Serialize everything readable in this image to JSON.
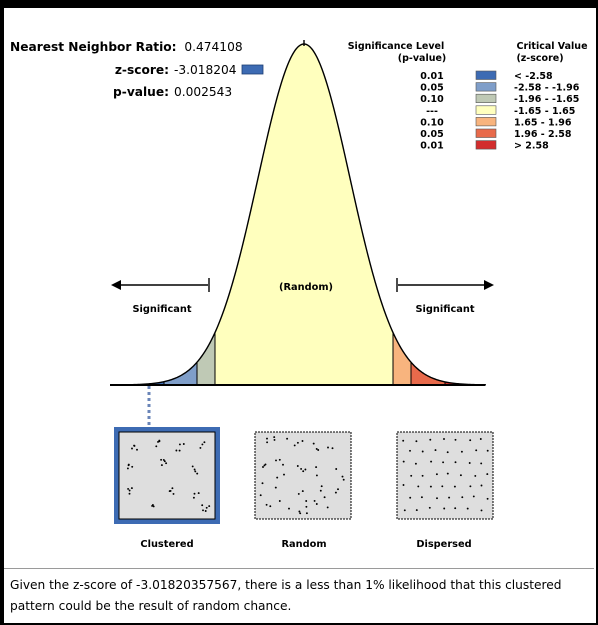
{
  "stats": {
    "nnr_label": "Nearest Neighbor Ratio:",
    "nnr_value": "0.474108",
    "z_label": "z-score:",
    "z_value": "-3.018204",
    "p_label": "p-value:",
    "p_value": "0.002543",
    "z_marker_color": "#3d6bb3"
  },
  "legend": {
    "sig_header_1": "Significance Level",
    "sig_header_2": "(p-value)",
    "crit_header_1": "Critical Value",
    "crit_header_2": "(z-score)",
    "rows": [
      {
        "p": "0.01",
        "z": "< -2.58",
        "color": "#3d6bb3"
      },
      {
        "p": "0.05",
        "z": "-2.58 - -1.96",
        "color": "#7f9ec9"
      },
      {
        "p": "0.10",
        "z": "-1.96 - -1.65",
        "color": "#bfc9b5"
      },
      {
        "p": "---",
        "z": "-1.65 - 1.65",
        "color": "#ffffbe"
      },
      {
        "p": "0.10",
        "z": "1.65 - 1.96",
        "color": "#f8b47e"
      },
      {
        "p": "0.05",
        "z": "1.96 - 2.58",
        "color": "#e86a4b"
      },
      {
        "p": "0.01",
        "z": "> 2.58",
        "color": "#d22d2d"
      }
    ]
  },
  "curve": {
    "random_label": "(Random)",
    "significant_left": "Significant",
    "significant_right": "Significant"
  },
  "patterns": {
    "clustered": "Clustered",
    "random": "Random",
    "dispersed": "Dispersed"
  },
  "summary": "Given the z-score of -3.01820357567, there is a less than 1% likelihood that this clustered pattern could be the result of random chance."
}
